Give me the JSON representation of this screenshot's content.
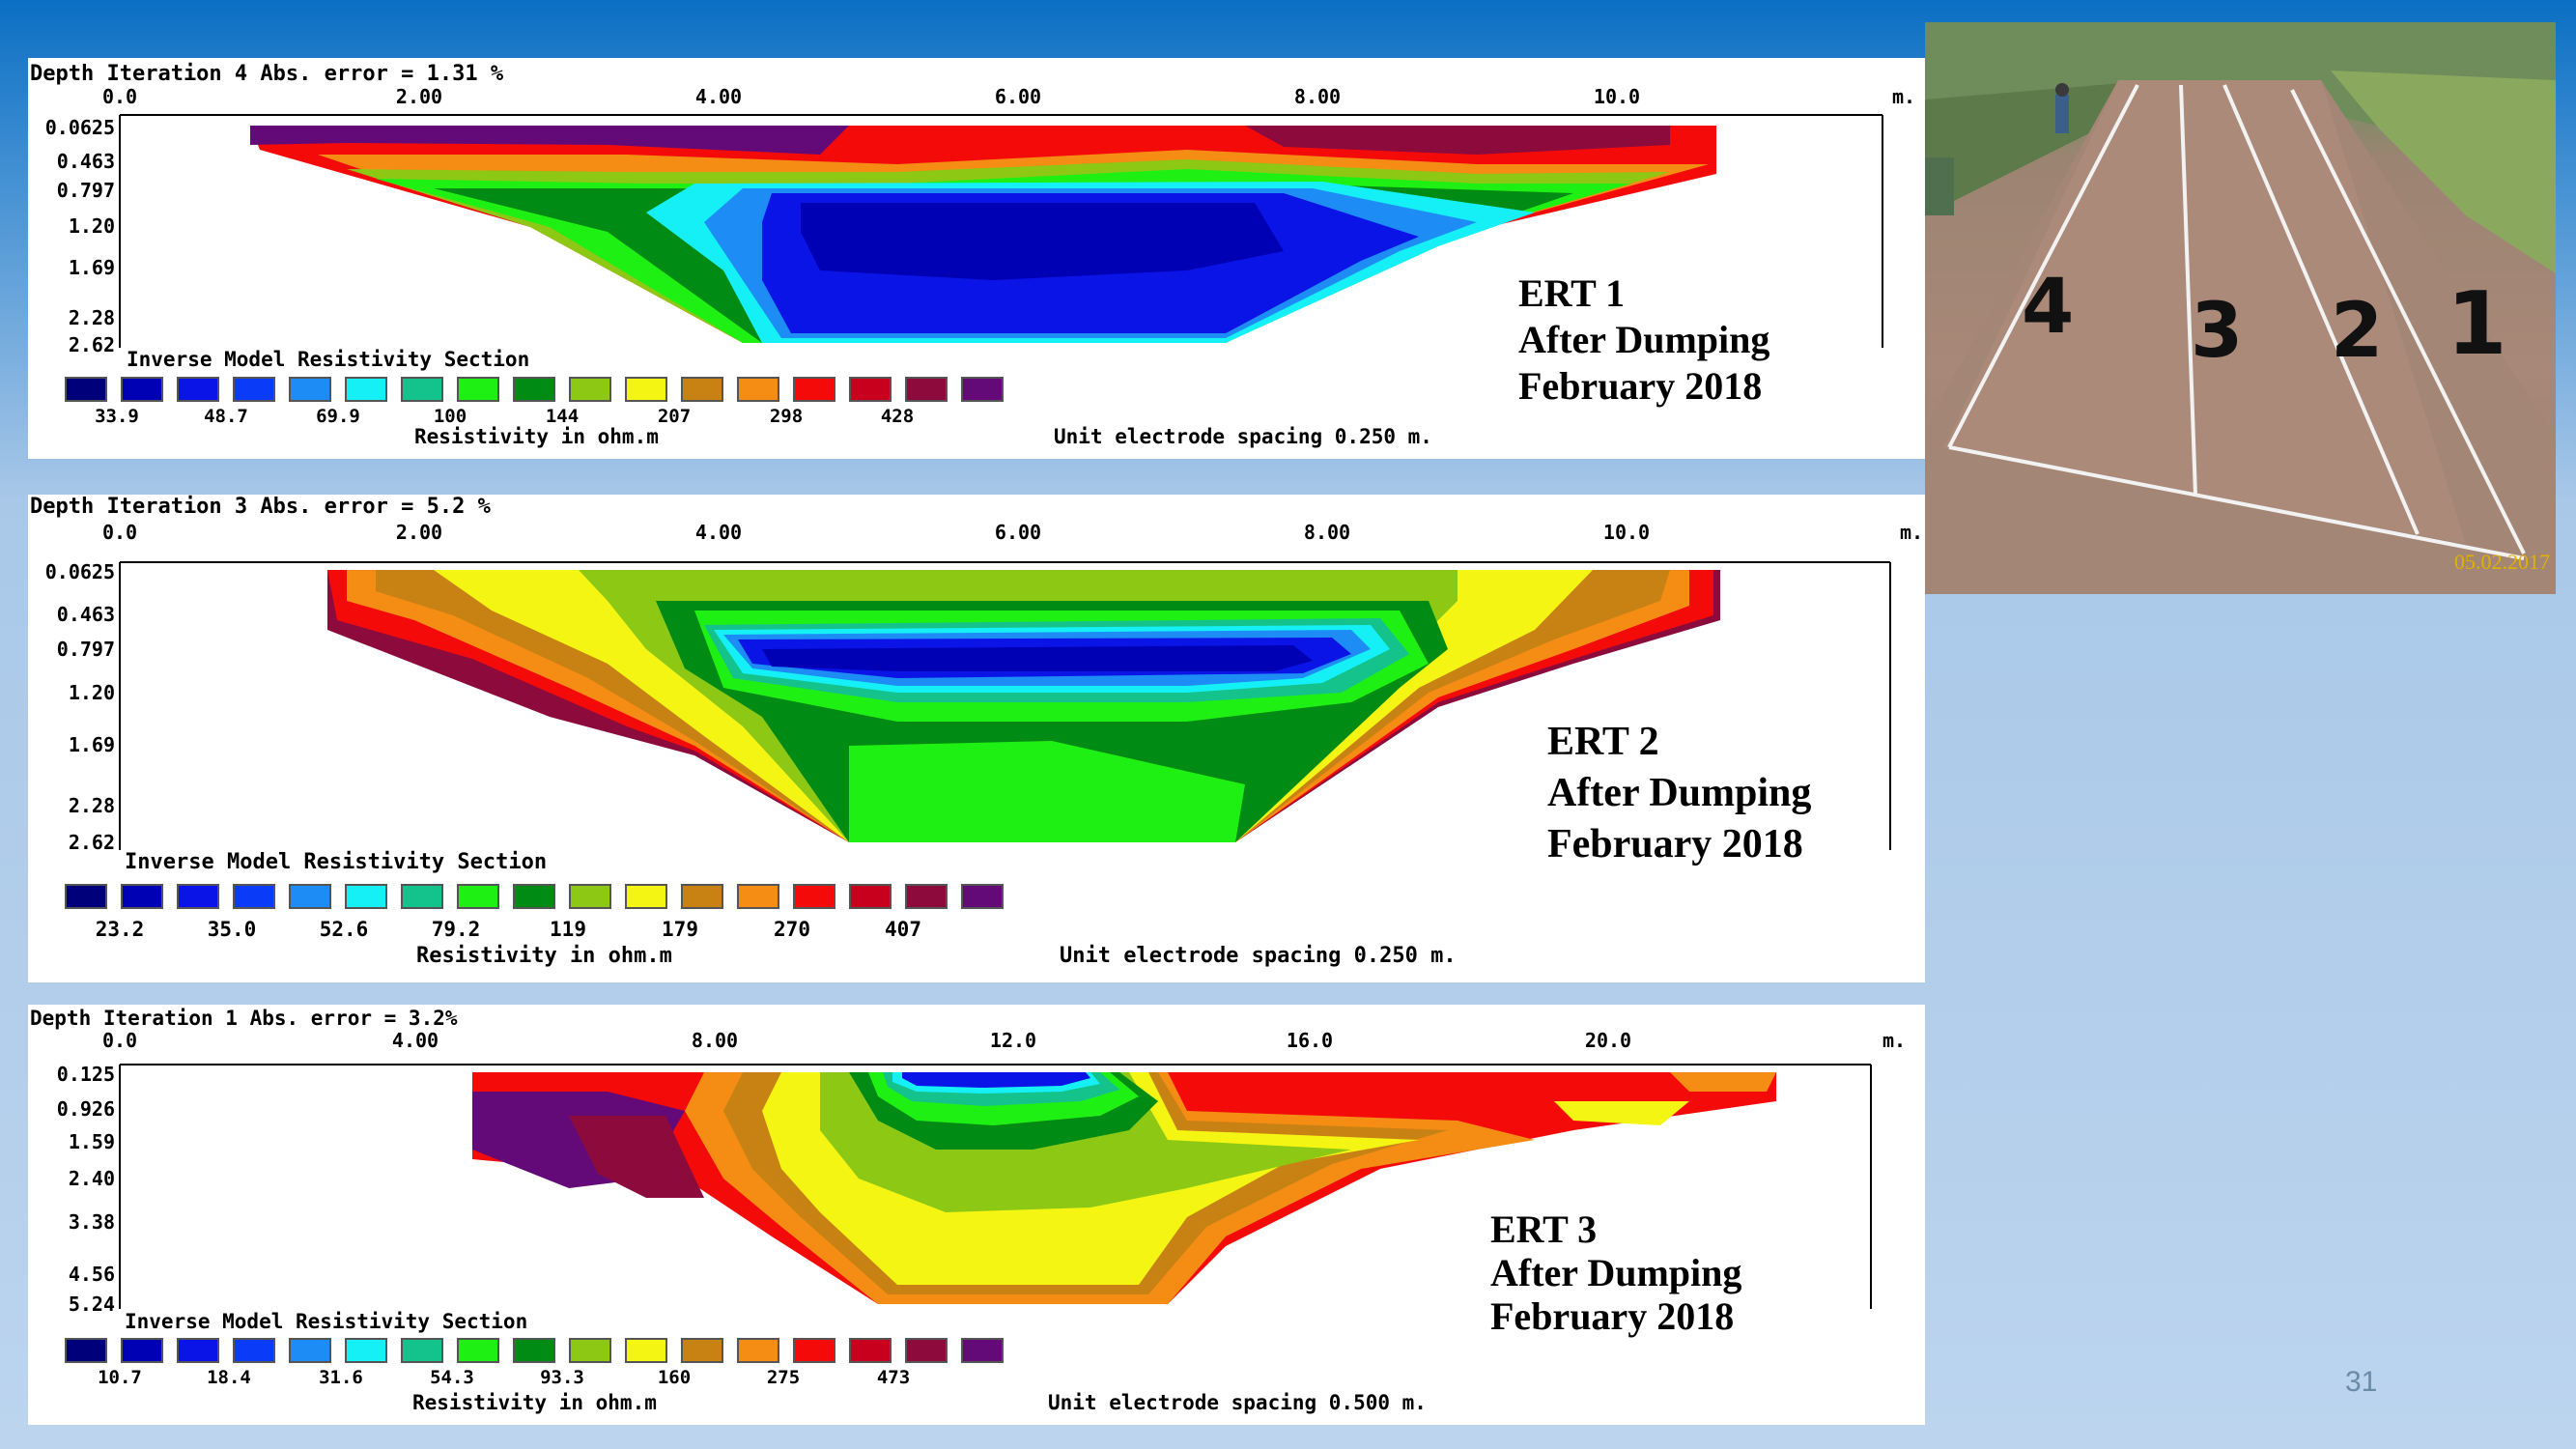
{
  "panels": [
    {
      "header": "Depth  Iteration 4 Abs. error = 1.31 %",
      "x_labels": [
        "0.0",
        "2.00",
        "4.00",
        "6.00",
        "8.00",
        "10.0"
      ],
      "x_unit": "m.",
      "depths": [
        "0.0625",
        "0.463",
        "0.797",
        "1.20",
        "1.69",
        "2.28",
        "2.62"
      ],
      "section_label": "Inverse Model Resistivity Section",
      "scale_values": [
        "33.9",
        "48.7",
        "69.9",
        "100",
        "144",
        "207",
        "298",
        "428"
      ],
      "scale_unit": "Resistivity in ohm.m",
      "spacing": "Unit electrode spacing 0.250 m.",
      "title_lines": [
        "ERT 1",
        "After Dumping",
        "February 2018"
      ]
    },
    {
      "header": "Depth  Iteration 3 Abs. error = 5.2 %",
      "x_labels": [
        "0.0",
        "2.00",
        "4.00",
        "6.00",
        "8.00",
        "10.0"
      ],
      "x_unit": "m.",
      "depths": [
        "0.0625",
        "0.463",
        "0.797",
        "1.20",
        "1.69",
        "2.28",
        "2.62"
      ],
      "section_label": "Inverse Model Resistivity Section",
      "scale_values": [
        "23.2",
        "35.0",
        "52.6",
        "79.2",
        "119",
        "179",
        "270",
        "407"
      ],
      "scale_unit": "Resistivity in ohm.m",
      "spacing": "Unit electrode spacing 0.250 m.",
      "title_lines": [
        "ERT 2",
        "After Dumping",
        "February 2018"
      ]
    },
    {
      "header": "Depth  Iteration 1 Abs. error = 3.2%",
      "x_labels": [
        "0.0",
        "4.00",
        "8.00",
        "12.0",
        "16.0",
        "20.0"
      ],
      "x_unit": "m.",
      "depths": [
        "0.125",
        "0.926",
        "1.59",
        "2.40",
        "3.38",
        "4.56",
        "5.24"
      ],
      "section_label": "Inverse Model Resistivity Section",
      "scale_values": [
        "10.7",
        "18.4",
        "31.6",
        "54.3",
        "93.3",
        "160",
        "275",
        "473"
      ],
      "scale_unit": "Resistivity in ohm.m",
      "spacing": "Unit electrode spacing 0.500 m.",
      "title_lines": [
        "ERT 3",
        "After Dumping",
        "February 2018"
      ]
    }
  ],
  "colors": [
    "#00007a",
    "#0000b4",
    "#0a14e6",
    "#0a3cf8",
    "#1e8cf5",
    "#14f0f5",
    "#14c38c",
    "#1ef014",
    "#008c14",
    "#8cc814",
    "#f5f514",
    "#c88214",
    "#f58c14",
    "#f50a0a",
    "#c8001e",
    "#8c0a3c",
    "#640a78"
  ],
  "photo": {
    "line_labels": [
      "4",
      "3",
      "2",
      "1"
    ],
    "date_stamp": "05.02.2017"
  },
  "page_number": "31"
}
